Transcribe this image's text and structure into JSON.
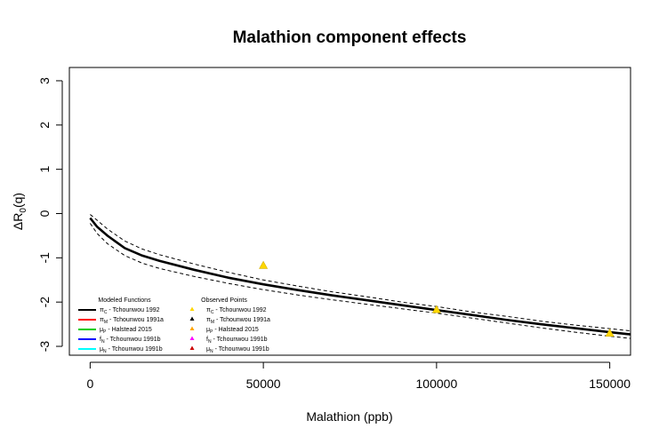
{
  "chart_data": {
    "type": "line",
    "title": "Malathion component effects",
    "xlabel": "Malathion (ppb)",
    "ylabel": {
      "main": "ΔR",
      "sub": "0",
      "suffix": "(q)"
    },
    "xlim": [
      -6000,
      156000
    ],
    "ylim": [
      -3.2,
      3.3
    ],
    "xticks": [
      0,
      50000,
      100000,
      150000
    ],
    "xtick_labels": [
      "0",
      "50000",
      "100000",
      "150000"
    ],
    "yticks": [
      3,
      2,
      1,
      0,
      -1,
      -2,
      -3
    ],
    "ytick_labels": [
      "3",
      "2",
      "1",
      "0",
      "-1",
      "-2",
      "-3"
    ],
    "grid": false,
    "series": [
      {
        "id": "fit",
        "style": "solid",
        "color": "#000000",
        "x": [
          0,
          2000,
          5000,
          10000,
          15000,
          20000,
          30000,
          40000,
          50000,
          60000,
          70000,
          80000,
          90000,
          100000,
          110000,
          120000,
          130000,
          140000,
          150000,
          156000
        ],
        "y": [
          -0.1,
          -0.3,
          -0.5,
          -0.78,
          -0.95,
          -1.07,
          -1.27,
          -1.45,
          -1.6,
          -1.73,
          -1.85,
          -1.96,
          -2.07,
          -2.18,
          -2.29,
          -2.4,
          -2.5,
          -2.59,
          -2.68,
          -2.73
        ]
      },
      {
        "id": "ci-upper",
        "style": "dashed",
        "color": "#000000",
        "x": [
          0,
          2000,
          5000,
          10000,
          15000,
          20000,
          30000,
          40000,
          50000,
          60000,
          70000,
          80000,
          90000,
          100000,
          110000,
          120000,
          130000,
          140000,
          150000,
          156000
        ],
        "y": [
          -0.02,
          -0.15,
          -0.35,
          -0.62,
          -0.8,
          -0.93,
          -1.14,
          -1.33,
          -1.5,
          -1.64,
          -1.77,
          -1.88,
          -2.0,
          -2.1,
          -2.22,
          -2.32,
          -2.43,
          -2.52,
          -2.6,
          -2.65
        ]
      },
      {
        "id": "ci-lower",
        "style": "dashed",
        "color": "#000000",
        "x": [
          0,
          2000,
          5000,
          10000,
          15000,
          20000,
          30000,
          40000,
          50000,
          60000,
          70000,
          80000,
          90000,
          100000,
          110000,
          120000,
          130000,
          140000,
          150000,
          156000
        ],
        "y": [
          -0.22,
          -0.45,
          -0.68,
          -0.95,
          -1.12,
          -1.24,
          -1.42,
          -1.58,
          -1.72,
          -1.84,
          -1.95,
          -2.05,
          -2.15,
          -2.25,
          -2.36,
          -2.47,
          -2.58,
          -2.68,
          -2.77,
          -2.82
        ]
      }
    ],
    "points": [
      {
        "x": 50000,
        "y": -1.17,
        "color": "#FFD700"
      },
      {
        "x": 100000,
        "y": -2.17,
        "color": "#FFD700"
      },
      {
        "x": 150000,
        "y": -2.7,
        "color": "#FFD700"
      }
    ],
    "legend_modeled": {
      "title": "Modeled Functions",
      "placement": "bottom-left",
      "entries": [
        {
          "symbol": "π",
          "sub": "C",
          "text": " - Tchounwou 1992",
          "color": "#000000"
        },
        {
          "symbol": "π",
          "sub": "M",
          "text": " - Tchounwou 1991a",
          "color": "#FF0000"
        },
        {
          "symbol": "μ",
          "sub": "P",
          "text": " - Halstead 2015",
          "color": "#00CC00"
        },
        {
          "symbol": "f",
          "sub": "N",
          "text": " - Tchounwou 1991b",
          "color": "#0000FF"
        },
        {
          "symbol": "μ",
          "sub": "N",
          "text": " - Tchounwou 1991b",
          "color": "#00FFFF"
        }
      ]
    },
    "legend_observed": {
      "title": "Observed Points",
      "placement": "bottom-left",
      "entries": [
        {
          "symbol": "π",
          "sub": "C",
          "text": " - Tchounwou 1992",
          "color": "#FFD700"
        },
        {
          "symbol": "π",
          "sub": "M",
          "text": " - Tchounwou 1991a",
          "color": "#000000"
        },
        {
          "symbol": "μ",
          "sub": "P",
          "text": " - Halstead 2015",
          "color": "#FFA500"
        },
        {
          "symbol": "f",
          "sub": "N",
          "text": " - Tchounwou 1991b",
          "color": "#FF00FF"
        },
        {
          "symbol": "μ",
          "sub": "N",
          "text": " - Tchounwou 1991b",
          "color": "#CC0000"
        }
      ]
    }
  }
}
